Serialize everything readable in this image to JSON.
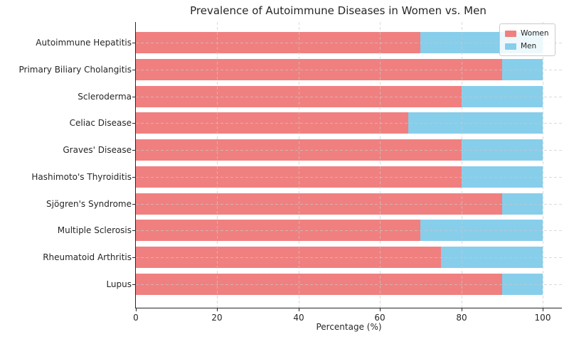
{
  "title": "Prevalence of Autoimmune Diseases in Women vs. Men",
  "chart_data": {
    "type": "bar",
    "orientation": "horizontal",
    "stacked": true,
    "title": "Prevalence of Autoimmune Diseases in Women vs. Men",
    "xlabel": "Percentage (%)",
    "ylabel": "",
    "categories": [
      "Autoimmune Hepatitis",
      "Primary Biliary Cholangitis",
      "Scleroderma",
      "Celiac Disease",
      "Graves' Disease",
      "Hashimoto's Thyroiditis",
      "Sjögren's Syndrome",
      "Multiple Sclerosis",
      "Rheumatoid Arthritis",
      "Lupus"
    ],
    "series": [
      {
        "name": "Women",
        "color": "#F08080",
        "values": [
          70,
          90,
          80,
          67,
          80,
          80,
          90,
          70,
          75,
          90
        ]
      },
      {
        "name": "Men",
        "color": "#87CEEB",
        "values": [
          30,
          10,
          20,
          33,
          20,
          20,
          10,
          30,
          25,
          10
        ]
      }
    ],
    "xlim": [
      0,
      105
    ],
    "xticks": [
      0,
      20,
      40,
      60,
      80,
      100
    ],
    "grid": true,
    "grid_style": "dashed",
    "legend_position": "upper right"
  },
  "legend": {
    "items": [
      {
        "label": "Women",
        "color": "#F08080"
      },
      {
        "label": "Men",
        "color": "#87CEEB"
      }
    ]
  },
  "colors": {
    "women": "#F08080",
    "men": "#87CEEB",
    "text": "#262626",
    "grid": "#c8c8c8",
    "background": "#ffffff"
  }
}
